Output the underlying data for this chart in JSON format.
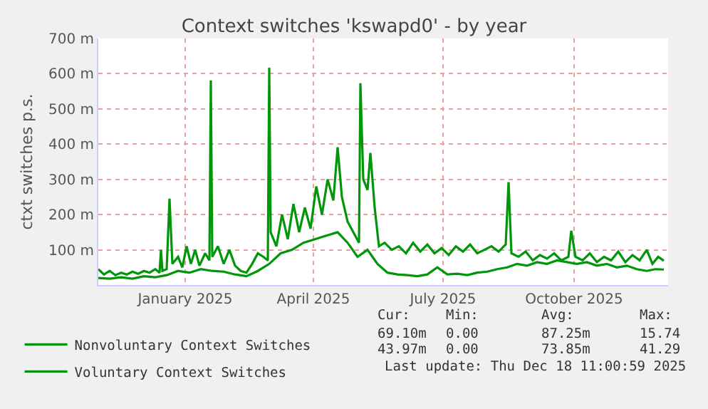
{
  "chart_data": {
    "type": "line",
    "title": "Context switches 'kswapd0' - by year",
    "ylabel": "ctxt switches p.s.",
    "xlim": [
      "2024-11-16",
      "2025-12-21"
    ],
    "xticks": [
      {
        "value": "2025-01-16",
        "label": "January 2025"
      },
      {
        "value": "2025-04-16",
        "label": "April 2025"
      },
      {
        "value": "2025-07-16",
        "label": "July 2025"
      },
      {
        "value": "2025-10-16",
        "label": "October 2025"
      }
    ],
    "ylim": [
      0,
      700
    ],
    "yticks": [
      {
        "value": 100,
        "label": "100 m"
      },
      {
        "value": 200,
        "label": "200 m"
      },
      {
        "value": 300,
        "label": "300 m"
      },
      {
        "value": 400,
        "label": "400 m"
      },
      {
        "value": 500,
        "label": "500 m"
      },
      {
        "value": 600,
        "label": "600 m"
      },
      {
        "value": 700,
        "label": "700 m"
      }
    ],
    "grid": true,
    "legend": "bottom left",
    "line_style": "solid",
    "marker": "none",
    "series": [
      {
        "name": "Nonvoluntary Context Switches",
        "color": "#00960a",
        "x": [
          "2024-11-16",
          "2024-11-20",
          "2024-11-24",
          "2024-11-28",
          "2024-12-02",
          "2024-12-06",
          "2024-12-10",
          "2024-12-14",
          "2024-12-18",
          "2024-12-22",
          "2024-12-26",
          "2024-12-29",
          "2024-12-30",
          "2024-12-31",
          "2025-01-03",
          "2025-01-05",
          "2025-01-07",
          "2025-01-11",
          "2025-01-14",
          "2025-01-17",
          "2025-01-20",
          "2025-01-23",
          "2025-01-26",
          "2025-01-30",
          "2025-02-02",
          "2025-02-03",
          "2025-02-04",
          "2025-02-08",
          "2025-02-12",
          "2025-02-16",
          "2025-02-20",
          "2025-02-24",
          "2025-02-28",
          "2025-03-04",
          "2025-03-08",
          "2025-03-12",
          "2025-03-15",
          "2025-03-16",
          "2025-03-17",
          "2025-03-21",
          "2025-03-25",
          "2025-03-29",
          "2025-04-02",
          "2025-04-06",
          "2025-04-10",
          "2025-04-14",
          "2025-04-18",
          "2025-04-22",
          "2025-04-26",
          "2025-04-30",
          "2025-05-03",
          "2025-05-06",
          "2025-05-10",
          "2025-05-14",
          "2025-05-18",
          "2025-05-19",
          "2025-05-21",
          "2025-05-24",
          "2025-05-26",
          "2025-05-29",
          "2025-06-01",
          "2025-06-05",
          "2025-06-10",
          "2025-06-15",
          "2025-06-20",
          "2025-06-25",
          "2025-06-30",
          "2025-07-05",
          "2025-07-10",
          "2025-07-15",
          "2025-07-20",
          "2025-07-25",
          "2025-07-30",
          "2025-08-04",
          "2025-08-09",
          "2025-08-14",
          "2025-08-19",
          "2025-08-24",
          "2025-08-29",
          "2025-08-31",
          "2025-09-02",
          "2025-09-07",
          "2025-09-12",
          "2025-09-17",
          "2025-09-22",
          "2025-09-27",
          "2025-10-02",
          "2025-10-07",
          "2025-10-12",
          "2025-10-14",
          "2025-10-17",
          "2025-10-22",
          "2025-10-27",
          "2025-11-01",
          "2025-11-06",
          "2025-11-11",
          "2025-11-16",
          "2025-11-21",
          "2025-11-26",
          "2025-12-01",
          "2025-12-06",
          "2025-12-10",
          "2025-12-14",
          "2025-12-18"
        ],
        "values": [
          45,
          30,
          40,
          28,
          35,
          30,
          38,
          32,
          40,
          35,
          45,
          35,
          100,
          40,
          45,
          245,
          60,
          80,
          50,
          110,
          60,
          100,
          55,
          90,
          70,
          581,
          80,
          110,
          60,
          100,
          55,
          40,
          35,
          60,
          90,
          80,
          70,
          617,
          150,
          110,
          200,
          130,
          230,
          150,
          220,
          160,
          280,
          200,
          300,
          240,
          391,
          250,
          180,
          150,
          120,
          573,
          300,
          270,
          375,
          220,
          110,
          120,
          100,
          110,
          90,
          120,
          95,
          115,
          90,
          105,
          85,
          110,
          95,
          115,
          90,
          100,
          110,
          95,
          115,
          292,
          90,
          80,
          95,
          70,
          85,
          75,
          90,
          70,
          80,
          154,
          80,
          70,
          90,
          65,
          80,
          70,
          95,
          65,
          85,
          70,
          100,
          60,
          80,
          69
        ]
      },
      {
        "name": "Voluntary Context Switches",
        "color": "#00960a",
        "x": [
          "2024-11-16",
          "2024-11-24",
          "2024-12-02",
          "2024-12-10",
          "2024-12-18",
          "2024-12-26",
          "2025-01-03",
          "2025-01-11",
          "2025-01-19",
          "2025-01-27",
          "2025-02-04",
          "2025-02-12",
          "2025-02-20",
          "2025-02-28",
          "2025-03-08",
          "2025-03-16",
          "2025-03-24",
          "2025-04-01",
          "2025-04-09",
          "2025-04-17",
          "2025-04-25",
          "2025-05-03",
          "2025-05-10",
          "2025-05-17",
          "2025-05-24",
          "2025-05-31",
          "2025-06-07",
          "2025-06-14",
          "2025-06-21",
          "2025-06-28",
          "2025-07-05",
          "2025-07-12",
          "2025-07-19",
          "2025-07-26",
          "2025-08-02",
          "2025-08-09",
          "2025-08-16",
          "2025-08-23",
          "2025-08-30",
          "2025-09-06",
          "2025-09-13",
          "2025-09-20",
          "2025-09-27",
          "2025-10-04",
          "2025-10-11",
          "2025-10-18",
          "2025-10-25",
          "2025-11-01",
          "2025-11-08",
          "2025-11-15",
          "2025-11-22",
          "2025-11-29",
          "2025-12-06",
          "2025-12-12",
          "2025-12-18"
        ],
        "values": [
          20,
          18,
          22,
          18,
          25,
          22,
          28,
          40,
          35,
          45,
          40,
          38,
          30,
          25,
          40,
          60,
          90,
          100,
          120,
          130,
          140,
          150,
          120,
          80,
          100,
          60,
          35,
          30,
          28,
          25,
          30,
          50,
          30,
          32,
          28,
          35,
          38,
          45,
          50,
          60,
          55,
          65,
          60,
          70,
          65,
          60,
          65,
          55,
          60,
          50,
          55,
          45,
          40,
          45,
          44
        ]
      }
    ],
    "annotations": [
      "Cur:",
      "Min:",
      "Avg:",
      "Max:",
      "69.10m",
      "0.00",
      "87.25m",
      "15.74",
      "43.97m",
      "0.00",
      "73.85m",
      "41.29",
      "Last update: Thu Dec 18 11:00:59 2025"
    ]
  }
}
